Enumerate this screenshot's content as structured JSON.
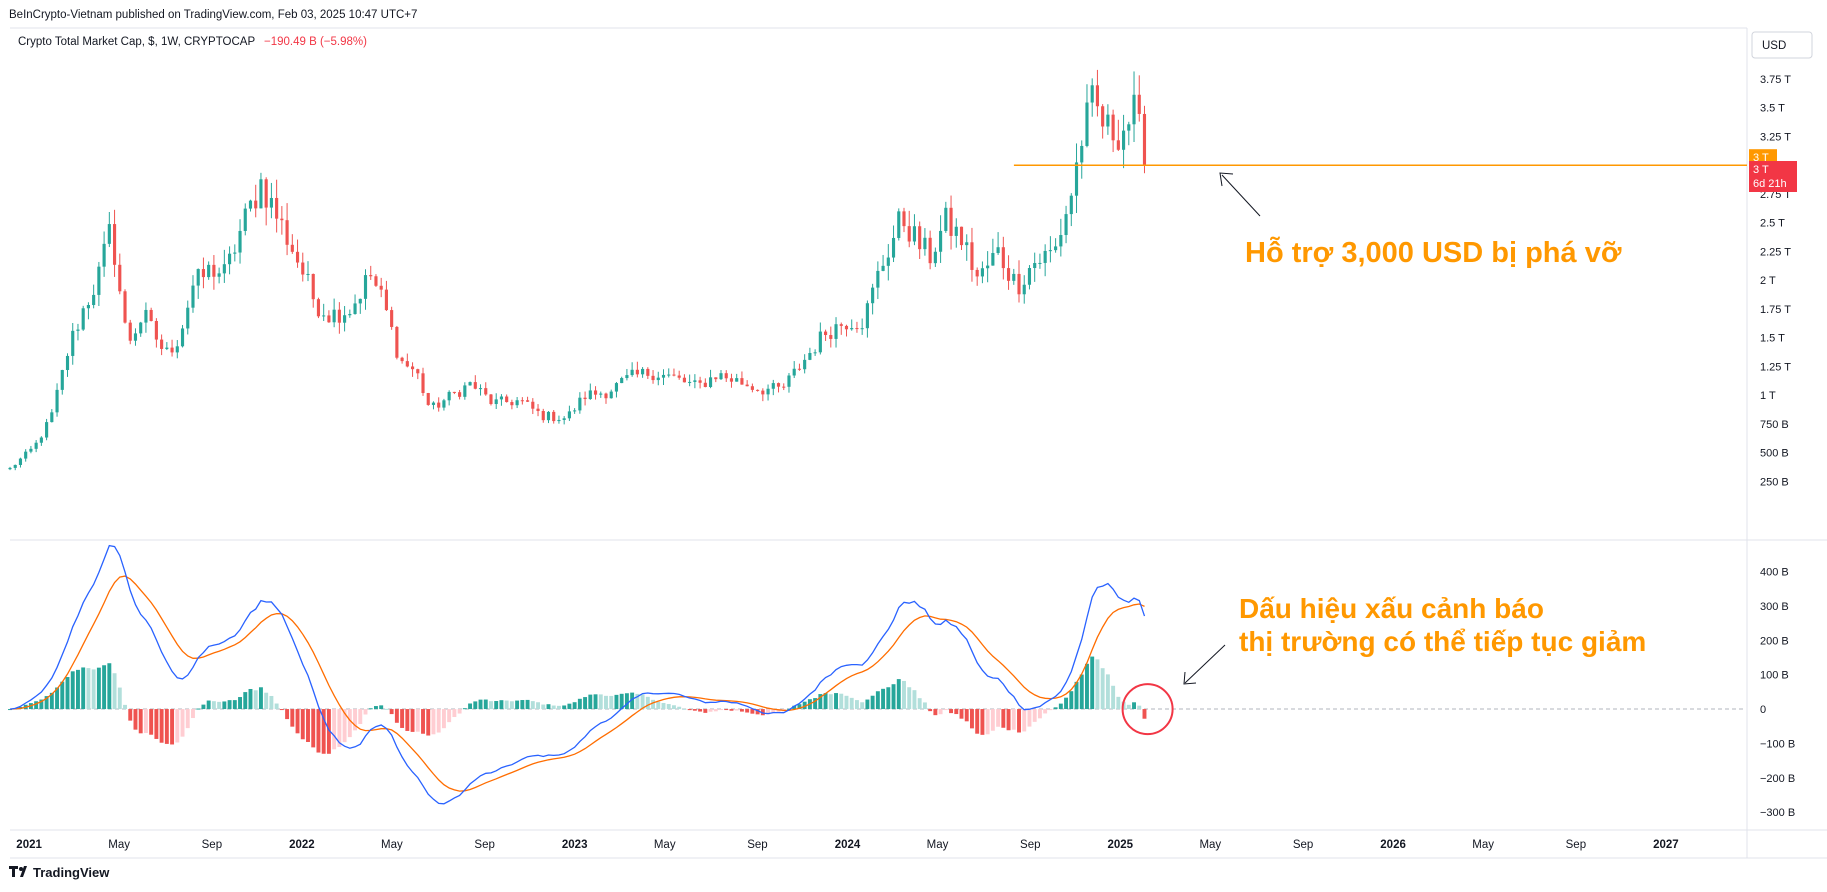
{
  "header": {
    "publisher": "BeInCrypto-Vietnam published on TradingView.com, Feb 03, 2025 10:47 UTC+7"
  },
  "legend": {
    "symbol": "Crypto Total Market Cap, $, 1W, CRYPTOCAP",
    "change": "−190.49 B (−5.98%)",
    "change_color": "#f23645"
  },
  "currency_button": "USD",
  "price_labels": {
    "support_value": "3 T",
    "last_value": "3 T",
    "countdown": "6d 21h",
    "support_color": "#ff9800",
    "last_color": "#f23645"
  },
  "annotations": {
    "support_text": "Hỗ trợ 3,000 USD bị phá vỡ",
    "macd_text_line1": "Dấu hiệu xấu cảnh báo",
    "macd_text_line2": "thị trường có thể tiếp tục giảm",
    "color": "#ff9800"
  },
  "footer": {
    "brand": "TradingView",
    "logo": "tradingview-logo"
  },
  "colors": {
    "up": "#26a69a",
    "down": "#ef5350",
    "up_light": "#b2dfdb",
    "down_light": "#ffcdd2",
    "macd_line": "#2962ff",
    "signal_line": "#ff6d00",
    "support_line": "#ff9800",
    "circle": "#f23645"
  },
  "chart_data": [
    {
      "type": "candlestick",
      "title": "Crypto Total Market Cap, $, 1W, CRYPTOCAP",
      "x_ticks": [
        "2021",
        "May",
        "Sep",
        "2022",
        "May",
        "Sep",
        "2023",
        "May",
        "Sep",
        "2024",
        "May",
        "Sep",
        "2025",
        "May",
        "Sep",
        "2026",
        "May",
        "Sep",
        "2027"
      ],
      "x_tick_months": [
        2021.0,
        2021.33,
        2021.67,
        2022.0,
        2022.33,
        2022.67,
        2023.0,
        2023.33,
        2023.67,
        2024.0,
        2024.33,
        2024.67,
        2025.0,
        2025.33,
        2025.67,
        2026.0,
        2026.33,
        2026.67,
        2027.0
      ],
      "y_ticks": [
        {
          "v": 3.75,
          "label": "3.75 T"
        },
        {
          "v": 3.5,
          "label": "3.5 T"
        },
        {
          "v": 3.25,
          "label": "3.25 T"
        },
        {
          "v": 2.75,
          "label": "2.75 T"
        },
        {
          "v": 2.5,
          "label": "2.5 T"
        },
        {
          "v": 2.25,
          "label": "2.25 T"
        },
        {
          "v": 2.0,
          "label": "2 T"
        },
        {
          "v": 1.75,
          "label": "1.75 T"
        },
        {
          "v": 1.5,
          "label": "1.5 T"
        },
        {
          "v": 1.25,
          "label": "1.25 T"
        },
        {
          "v": 1.0,
          "label": "1 T"
        },
        {
          "v": 0.75,
          "label": "750 B"
        },
        {
          "v": 0.5,
          "label": "500 B"
        },
        {
          "v": 0.25,
          "label": "250 B"
        }
      ],
      "y_unit": "T (trillion USD)",
      "ylim": [
        0.0,
        3.95
      ],
      "support_level": 3.0,
      "support_start": 2024.61,
      "anchors": [
        {
          "t": 2020.93,
          "c": 0.36
        },
        {
          "t": 2021.02,
          "c": 0.55
        },
        {
          "t": 2021.08,
          "c": 0.8
        },
        {
          "t": 2021.15,
          "c": 1.45
        },
        {
          "t": 2021.2,
          "c": 1.75
        },
        {
          "t": 2021.25,
          "c": 2.0
        },
        {
          "t": 2021.3,
          "c": 2.45
        },
        {
          "t": 2021.36,
          "c": 1.45
        },
        {
          "t": 2021.42,
          "c": 1.7
        },
        {
          "t": 2021.5,
          "c": 1.35
        },
        {
          "t": 2021.55,
          "c": 1.5
        },
        {
          "t": 2021.6,
          "c": 1.95
        },
        {
          "t": 2021.67,
          "c": 2.1
        },
        {
          "t": 2021.72,
          "c": 2.05
        },
        {
          "t": 2021.77,
          "c": 2.4
        },
        {
          "t": 2021.85,
          "c": 2.85
        },
        {
          "t": 2021.92,
          "c": 2.5
        },
        {
          "t": 2021.98,
          "c": 2.2
        },
        {
          "t": 2022.05,
          "c": 1.8
        },
        {
          "t": 2022.1,
          "c": 1.7
        },
        {
          "t": 2022.18,
          "c": 1.75
        },
        {
          "t": 2022.25,
          "c": 2.05
        },
        {
          "t": 2022.3,
          "c": 1.8
        },
        {
          "t": 2022.36,
          "c": 1.3
        },
        {
          "t": 2022.42,
          "c": 1.2
        },
        {
          "t": 2022.47,
          "c": 0.87
        },
        {
          "t": 2022.55,
          "c": 1.0
        },
        {
          "t": 2022.62,
          "c": 1.1
        },
        {
          "t": 2022.7,
          "c": 0.93
        },
        {
          "t": 2022.8,
          "c": 0.95
        },
        {
          "t": 2022.88,
          "c": 0.82
        },
        {
          "t": 2022.97,
          "c": 0.8
        },
        {
          "t": 2023.04,
          "c": 1.0
        },
        {
          "t": 2023.12,
          "c": 1.03
        },
        {
          "t": 2023.2,
          "c": 1.15
        },
        {
          "t": 2023.28,
          "c": 1.2
        },
        {
          "t": 2023.36,
          "c": 1.15
        },
        {
          "t": 2023.45,
          "c": 1.07
        },
        {
          "t": 2023.52,
          "c": 1.18
        },
        {
          "t": 2023.6,
          "c": 1.12
        },
        {
          "t": 2023.68,
          "c": 1.05
        },
        {
          "t": 2023.76,
          "c": 1.05
        },
        {
          "t": 2023.84,
          "c": 1.3
        },
        {
          "t": 2023.92,
          "c": 1.55
        },
        {
          "t": 2024.0,
          "c": 1.65
        },
        {
          "t": 2024.06,
          "c": 1.65
        },
        {
          "t": 2024.12,
          "c": 2.1
        },
        {
          "t": 2024.2,
          "c": 2.55
        },
        {
          "t": 2024.25,
          "c": 2.35
        },
        {
          "t": 2024.3,
          "c": 2.2
        },
        {
          "t": 2024.36,
          "c": 2.5
        },
        {
          "t": 2024.42,
          "c": 2.35
        },
        {
          "t": 2024.48,
          "c": 2.0
        },
        {
          "t": 2024.55,
          "c": 2.25
        },
        {
          "t": 2024.62,
          "c": 1.95
        },
        {
          "t": 2024.68,
          "c": 2.15
        },
        {
          "t": 2024.76,
          "c": 2.25
        },
        {
          "t": 2024.82,
          "c": 2.75
        },
        {
          "t": 2024.86,
          "c": 3.25
        },
        {
          "t": 2024.9,
          "c": 3.55
        },
        {
          "t": 2024.95,
          "c": 3.3
        },
        {
          "t": 2025.0,
          "c": 3.3
        },
        {
          "t": 2025.05,
          "c": 3.45
        },
        {
          "t": 2025.08,
          "c": 3.18
        },
        {
          "t": 2025.1,
          "c": 2.98
        }
      ],
      "last_close": 3.0
    },
    {
      "type": "macd",
      "series": [
        {
          "name": "MACD",
          "role": "line"
        },
        {
          "name": "Signal",
          "role": "line"
        },
        {
          "name": "Histogram",
          "role": "bar"
        }
      ],
      "y_ticks": [
        {
          "v": 400,
          "label": "400 B"
        },
        {
          "v": 300,
          "label": "300 B"
        },
        {
          "v": 200,
          "label": "200 B"
        },
        {
          "v": 100,
          "label": "100 B"
        },
        {
          "v": 0,
          "label": "0"
        },
        {
          "v": -100,
          "label": "−100 B"
        },
        {
          "v": -200,
          "label": "−200 B"
        },
        {
          "v": -300,
          "label": "−300 B"
        }
      ],
      "y_unit": "B (billion USD)",
      "ylim": [
        -340,
        445
      ],
      "highlight_circle_at": 2025.1
    }
  ]
}
